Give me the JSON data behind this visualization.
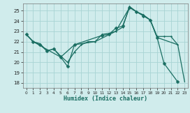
{
  "xlabel": "Humidex (Indice chaleur)",
  "bg_color": "#d0ecec",
  "grid_color": "#a8d4d4",
  "line_color": "#1a6e62",
  "xlim": [
    -0.5,
    23.5
  ],
  "ylim": [
    17.5,
    25.7
  ],
  "yticks": [
    18,
    19,
    20,
    21,
    22,
    23,
    24,
    25
  ],
  "xticks": [
    0,
    1,
    2,
    3,
    4,
    5,
    6,
    7,
    8,
    9,
    10,
    11,
    12,
    13,
    14,
    15,
    16,
    17,
    18,
    19,
    20,
    21,
    22,
    23
  ],
  "line1_x": [
    0,
    1,
    2,
    3,
    4,
    5,
    6,
    7,
    11,
    12,
    13,
    14,
    15,
    16,
    17,
    18,
    19,
    20,
    22
  ],
  "line1_y": [
    22.7,
    22.0,
    21.7,
    21.1,
    21.3,
    20.5,
    19.6,
    21.7,
    22.6,
    22.7,
    23.3,
    23.5,
    25.3,
    24.9,
    24.5,
    24.1,
    22.4,
    19.9,
    18.1
  ],
  "line2_x": [
    0,
    1,
    2,
    3,
    4,
    5,
    6,
    7,
    8,
    9,
    10,
    11,
    12,
    13,
    14,
    15,
    16,
    17,
    18,
    19,
    20,
    21,
    22
  ],
  "line2_y": [
    22.7,
    22.0,
    21.8,
    21.1,
    21.3,
    20.6,
    20.0,
    21.0,
    21.7,
    22.0,
    22.0,
    22.7,
    22.8,
    23.0,
    23.4,
    25.4,
    24.9,
    24.6,
    24.1,
    22.5,
    22.5,
    22.5,
    21.7
  ],
  "line3_x": [
    0,
    1,
    5,
    7,
    10,
    13,
    15,
    18,
    19,
    22,
    23
  ],
  "line3_y": [
    22.7,
    22.0,
    20.5,
    21.7,
    22.0,
    23.0,
    25.3,
    24.1,
    22.4,
    21.7,
    18.1
  ],
  "marker_size": 2.5,
  "line_width": 0.9
}
